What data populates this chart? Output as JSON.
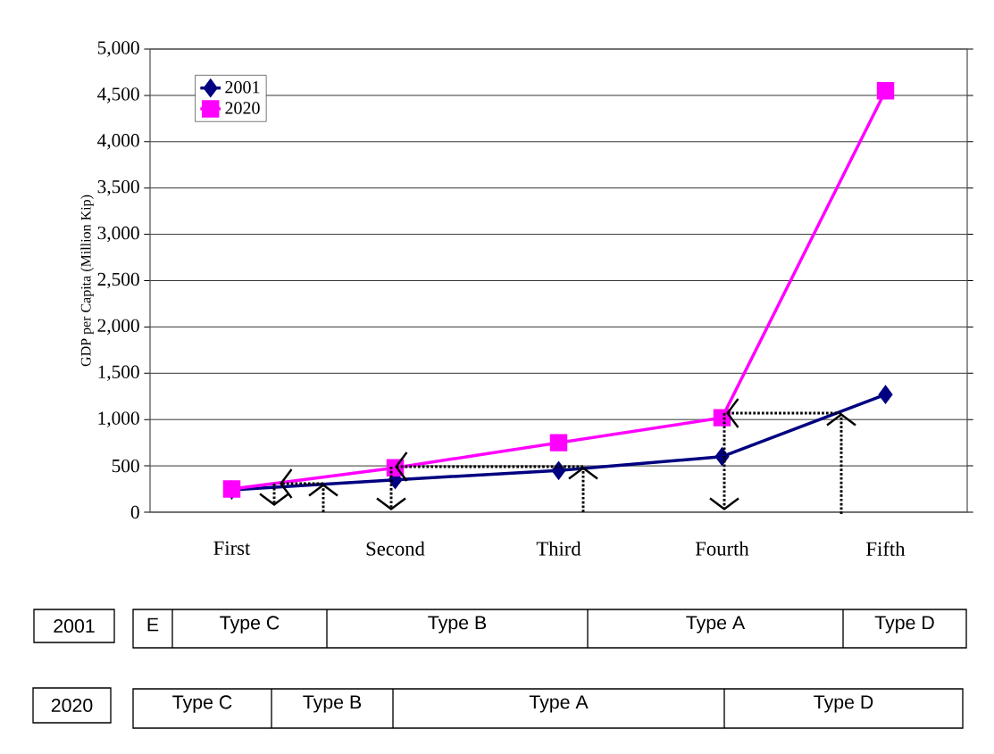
{
  "chart_data": {
    "type": "line",
    "ylabel": "GDP per Capita (Million Kip)",
    "categories": [
      "First",
      "Second",
      "Third",
      "Fourth",
      "Fifth"
    ],
    "series": [
      {
        "name": "2001",
        "color": "#000080",
        "marker": "diamond",
        "values": [
          240,
          350,
          450,
          600,
          1270
        ]
      },
      {
        "name": "2020",
        "color": "#ff00ff",
        "marker": "square",
        "values": [
          250,
          480,
          750,
          1020,
          4550
        ]
      }
    ],
    "ylim": [
      0,
      5000
    ],
    "yticks": [
      0,
      500,
      {
        "value": 1000,
        "label": "1,000"
      },
      {
        "value": 1500,
        "label": "1,500"
      },
      {
        "value": 2000,
        "label": "2,000"
      },
      {
        "value": 2500,
        "label": "2,500"
      },
      {
        "value": 3000,
        "label": "3,000"
      },
      {
        "value": 3500,
        "label": "3,500"
      },
      {
        "value": 4000,
        "label": "4,000"
      },
      {
        "value": 4500,
        "label": "4,500"
      },
      {
        "value": 5000,
        "label": "5,000"
      }
    ],
    "grid": "y",
    "legend": "top left",
    "annotations": [
      "2001",
      "E",
      "Type C",
      "Type B",
      "Type A",
      "Type D",
      "2020",
      "Type C",
      "Type B",
      "Type A",
      "Type D"
    ]
  }
}
